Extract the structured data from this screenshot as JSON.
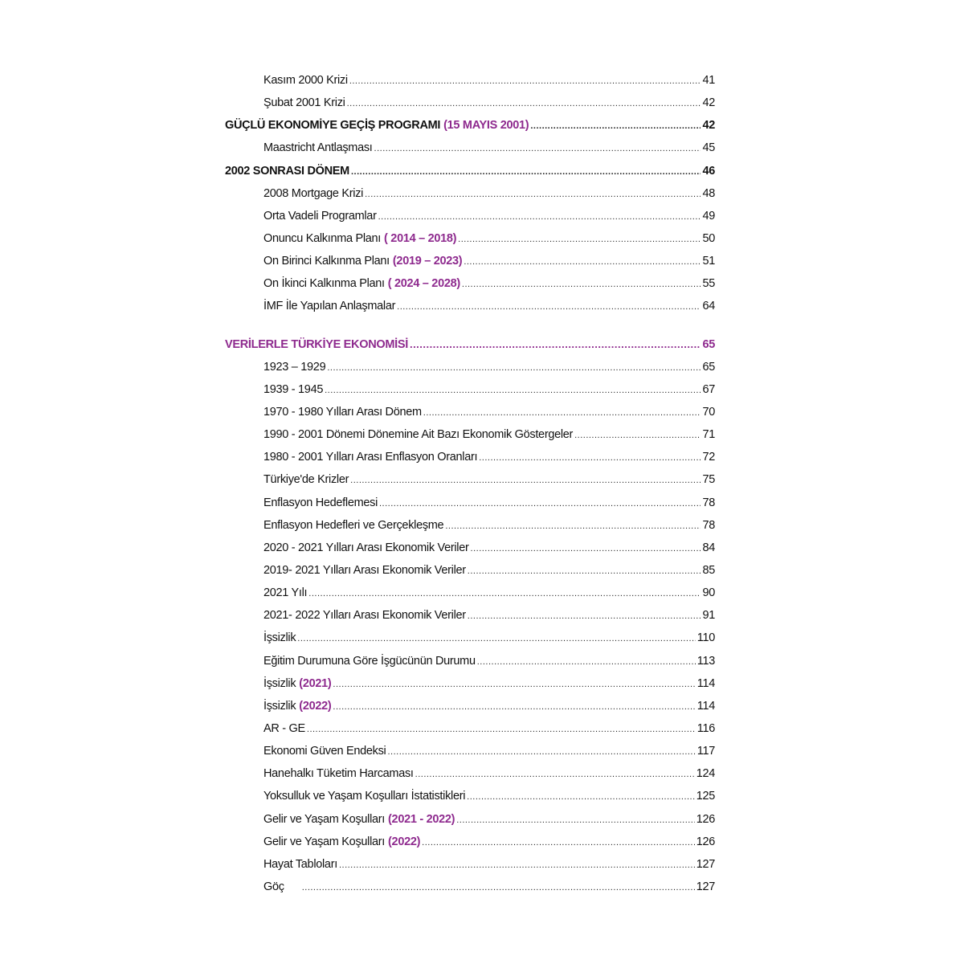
{
  "accent_color": "#8e2a8e",
  "entries": [
    {
      "level": "sub",
      "title": "Kasım 2000 Krizi",
      "highlight": "",
      "page": "41"
    },
    {
      "level": "sub",
      "title": "Şubat 2001 Krizi",
      "highlight": "",
      "page": "42"
    },
    {
      "level": "top",
      "title": "GÜÇLÜ EKONOMİYE GEÇİŞ PROGRAMI",
      "highlight": "(15 MAYIS 2001)",
      "page": "42"
    },
    {
      "level": "sub",
      "title": "Maastricht Antlaşması",
      "highlight": "",
      "page": "45"
    },
    {
      "level": "top",
      "title": "2002 SONRASI DÖNEM",
      "highlight": "",
      "page": "46"
    },
    {
      "level": "sub",
      "title": "2008 Mortgage Krizi",
      "highlight": "",
      "page": "48"
    },
    {
      "level": "sub",
      "title": "Orta Vadeli Programlar",
      "highlight": "",
      "page": "49"
    },
    {
      "level": "sub",
      "title": "Onuncu Kalkınma Planı",
      "highlight": "( 2014 – 2018)",
      "page": "50"
    },
    {
      "level": "sub",
      "title": "On Birinci Kalkınma Planı",
      "highlight": "(2019 – 2023)",
      "page": "51"
    },
    {
      "level": "sub",
      "title": "On İkinci Kalkınma Planı",
      "highlight": "( 2024 – 2028)",
      "page": "55"
    },
    {
      "level": "sub",
      "title": "İMF İle Yapılan Anlaşmalar",
      "highlight": "",
      "page": "64"
    },
    {
      "level": "section",
      "title": "VERİLERLE TÜRKİYE EKONOMİSİ",
      "highlight": "",
      "page": "65"
    },
    {
      "level": "sub",
      "title": "1923 – 1929",
      "highlight": "",
      "page": "65"
    },
    {
      "level": "sub",
      "title": "1939 - 1945",
      "highlight": "",
      "page": "67"
    },
    {
      "level": "sub",
      "title": "1970 - 1980 Yılları Arası Dönem",
      "highlight": "",
      "page": "70"
    },
    {
      "level": "sub",
      "title": "1990 - 2001 Dönemi Dönemine Ait Bazı Ekonomik Göstergeler",
      "highlight": "",
      "page": "71"
    },
    {
      "level": "sub",
      "title": "1980 - 2001 Yılları Arası Enflasyon Oranları",
      "highlight": "",
      "page": "72"
    },
    {
      "level": "sub",
      "title": "Türkiye'de Krizler",
      "highlight": "",
      "page": "75"
    },
    {
      "level": "sub",
      "title": "Enflasyon Hedeflemesi",
      "highlight": "",
      "page": "78"
    },
    {
      "level": "sub",
      "title": "Enflasyon Hedefleri ve Gerçekleşme",
      "highlight": "",
      "page": "78"
    },
    {
      "level": "sub",
      "title": "2020 - 2021 Yılları Arası Ekonomik Veriler",
      "highlight": "",
      "page": "84"
    },
    {
      "level": "sub",
      "title": "2019- 2021 Yılları Arası Ekonomik Veriler",
      "highlight": "",
      "page": "85"
    },
    {
      "level": "sub",
      "title": "2021 Yılı",
      "highlight": "",
      "page": "90"
    },
    {
      "level": "sub",
      "title": "2021- 2022 Yılları Arası Ekonomik Veriler",
      "highlight": "",
      "page": "91"
    },
    {
      "level": "sub",
      "title": "İşsizlik",
      "highlight": "",
      "page": "110"
    },
    {
      "level": "sub",
      "title": "Eğitim Durumuna Göre İşgücünün Durumu",
      "highlight": "",
      "page": "113"
    },
    {
      "level": "sub",
      "title": "İşsizlik",
      "highlight": "(2021)",
      "page": "114"
    },
    {
      "level": "sub",
      "title": "İşsizlik",
      "highlight": "(2022)",
      "page": "114"
    },
    {
      "level": "sub",
      "title": "AR - GE",
      "highlight": "",
      "page": "116"
    },
    {
      "level": "sub",
      "title": "Ekonomi Güven Endeksi",
      "highlight": "",
      "page": "117"
    },
    {
      "level": "sub",
      "title": "Hanehalkı Tüketim Harcaması",
      "highlight": "",
      "page": "124"
    },
    {
      "level": "sub",
      "title": "Yoksulluk ve Yaşam Koşulları İstatistikleri",
      "highlight": "",
      "page": "125"
    },
    {
      "level": "sub",
      "title": "Gelir ve Yaşam Koşulları",
      "highlight": "(2021 - 2022)",
      "page": "126"
    },
    {
      "level": "sub",
      "title": "Gelir ve Yaşam Koşulları",
      "highlight": "(2022)",
      "page": "126"
    },
    {
      "level": "sub",
      "title": "Hayat Tabloları",
      "highlight": "",
      "page": "127"
    },
    {
      "level": "sub",
      "title": "Göç",
      "highlight": "",
      "page": "127"
    }
  ]
}
